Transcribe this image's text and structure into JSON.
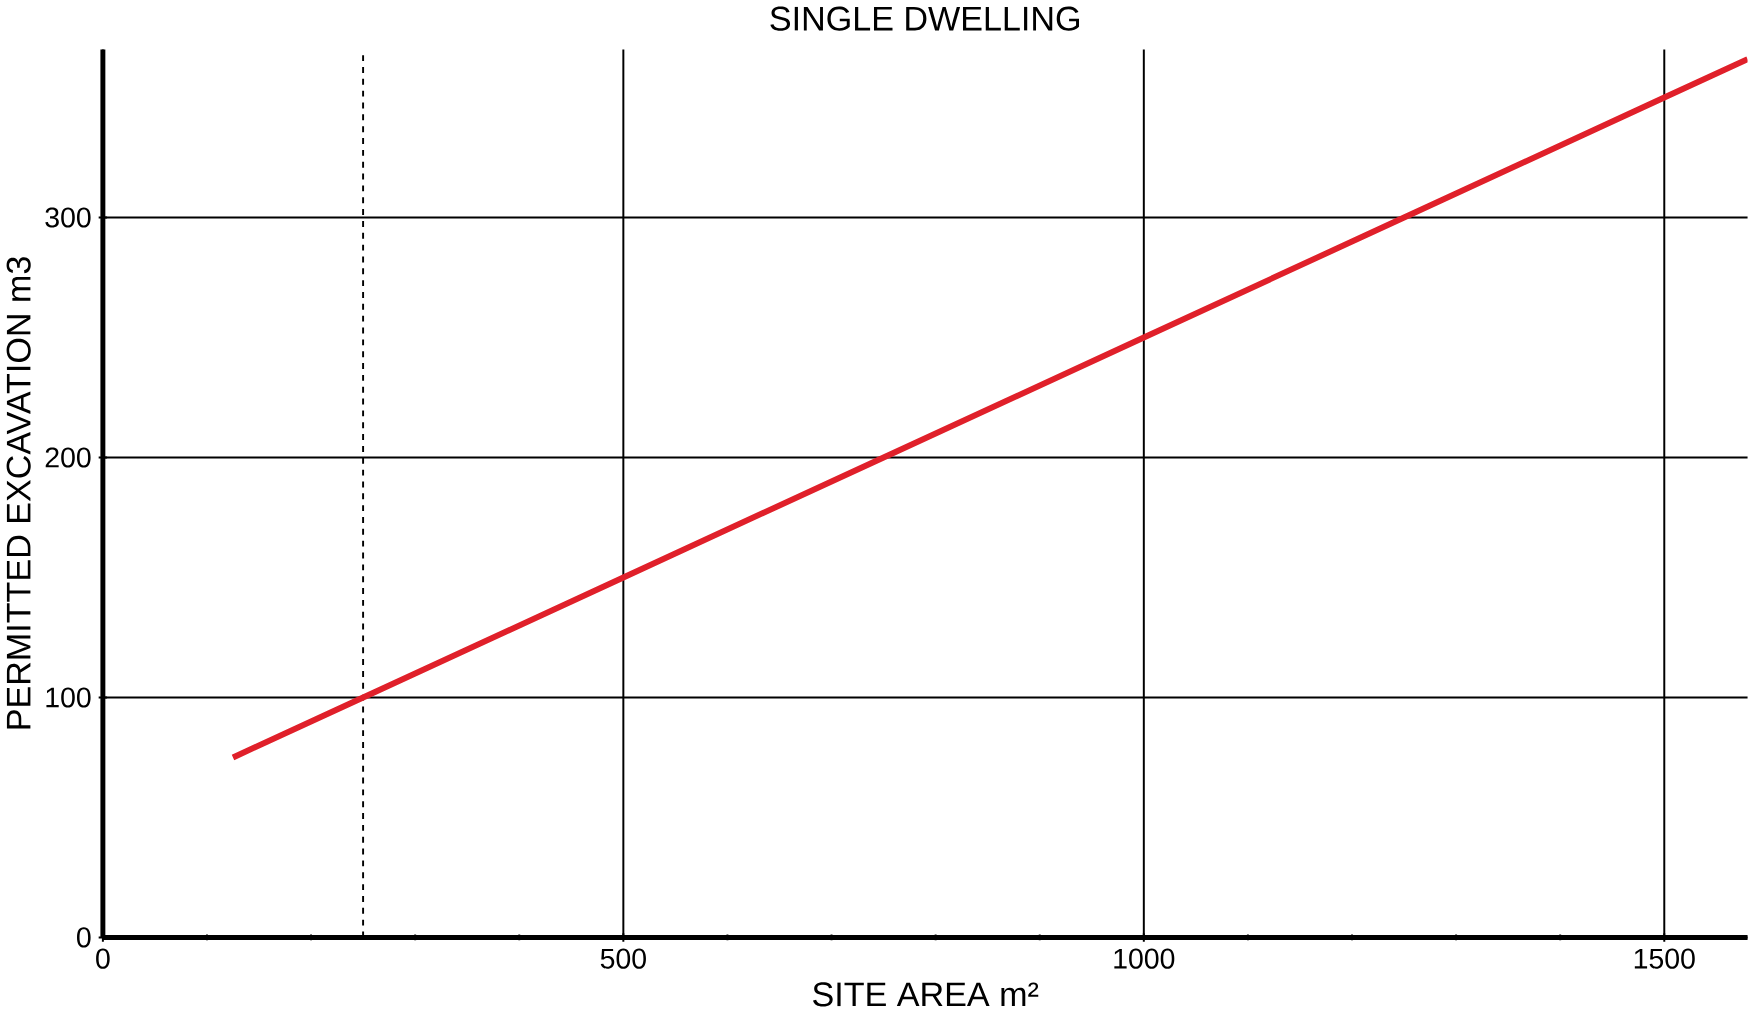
{
  "chart_data": {
    "type": "line",
    "title": "SINGLE DWELLING",
    "xlabel": "SITE AREA m²",
    "ylabel": "PERMITTED EXCAVATION m3",
    "x": [
      125,
      250,
      500,
      750,
      1000,
      1250,
      1500,
      1580
    ],
    "series": [
      {
        "color": "#e0202a",
        "values": [
          75,
          100,
          150,
          200,
          250,
          300,
          350,
          366
        ]
      }
    ],
    "xlim": [
      0,
      1580
    ],
    "ylim": [
      0,
      370
    ],
    "xticks": [
      0,
      500,
      1000,
      1500
    ],
    "yticks": [
      0,
      100,
      200,
      300
    ],
    "grid": true,
    "ref_lines": [
      {
        "axis": "x",
        "value": 250,
        "line_style": "dashed"
      }
    ]
  }
}
